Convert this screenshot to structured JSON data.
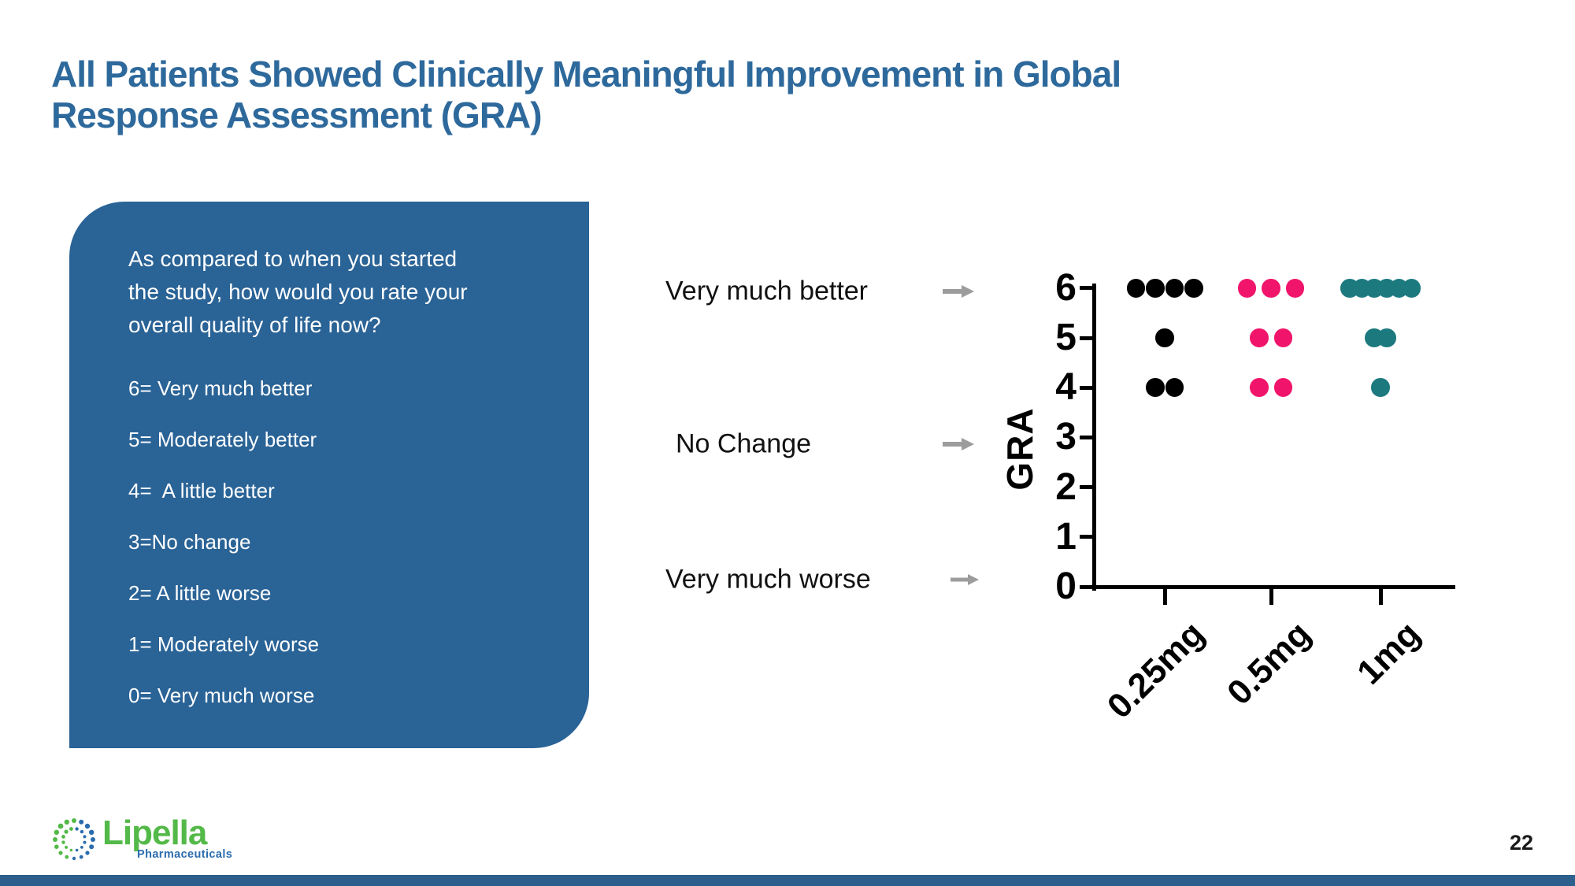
{
  "slide": {
    "title_lines": [
      "All Patients Showed Clinically Meaningful Improvement in Global",
      "Response Assessment (GRA)"
    ],
    "page_number": "22"
  },
  "question_box": {
    "question_lines": [
      "As compared to when you started",
      "the study, how would you rate your",
      "overall quality of life now?"
    ],
    "scale_items": [
      "6= Very much better",
      "5= Moderately better",
      "4=  A little better",
      "3=No change",
      "2= A little worse",
      "1= Moderately worse",
      "0= Very much worse"
    ]
  },
  "annotation_labels": [
    "Very much better",
    "No Change",
    "Very much worse"
  ],
  "logo": {
    "brand": "Lipella",
    "sub": "Pharmaceuticals"
  },
  "colors": {
    "title_blue": "#2E699C",
    "box_blue": "#2A6396",
    "series_black": "#000000",
    "series_pink": "#F0156B",
    "series_teal": "#1C7A7F",
    "arrow_gray": "#9C9C9C",
    "bottom_bar": "#2C5F8C",
    "logo_green": "#53B948",
    "logo_blue": "#2B6CAE"
  },
  "chart_data": {
    "type": "scatter",
    "title": "",
    "xlabel": "",
    "ylabel": "GRA",
    "ylim": [
      0,
      6
    ],
    "yticks": [
      0,
      1,
      2,
      3,
      4,
      5,
      6
    ],
    "grid": false,
    "legend": false,
    "categories": [
      "0.25mg",
      "0.5mg",
      "1mg"
    ],
    "series": [
      {
        "name": "0.25mg",
        "color": "#000000",
        "points": [
          {
            "gra": 6,
            "count": 4
          },
          {
            "gra": 5,
            "count": 1
          },
          {
            "gra": 4,
            "count": 2
          }
        ]
      },
      {
        "name": "0.5mg",
        "color": "#F0156B",
        "points": [
          {
            "gra": 6,
            "count": 3
          },
          {
            "gra": 5,
            "count": 2
          },
          {
            "gra": 4,
            "count": 2
          }
        ]
      },
      {
        "name": "1mg",
        "color": "#1C7A7F",
        "points": [
          {
            "gra": 6,
            "count": 6
          },
          {
            "gra": 5,
            "count": 2
          },
          {
            "gra": 4,
            "count": 1
          }
        ]
      }
    ],
    "value_annotations": [
      {
        "gra": 6,
        "label": "Very much better"
      },
      {
        "gra": 3,
        "label": "No Change"
      },
      {
        "gra": 0,
        "label": "Very much worse"
      }
    ]
  }
}
